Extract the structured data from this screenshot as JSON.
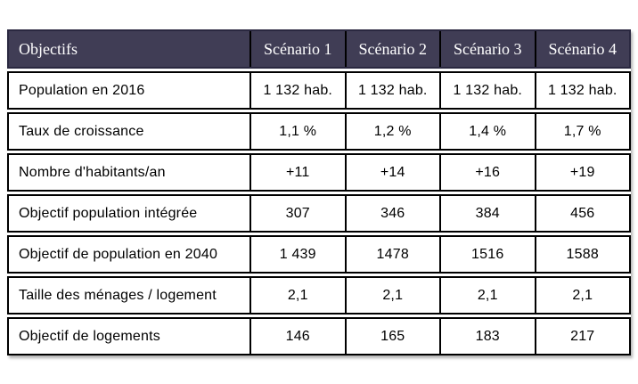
{
  "chart_data": {
    "type": "table",
    "title": "",
    "columns": [
      "Objectifs",
      "Scénario 1",
      "Scénario 2",
      "Scénario 3",
      "Scénario 4"
    ],
    "rows": [
      {
        "label": "Population en 2016",
        "values": [
          "1 132 hab.",
          "1 132 hab.",
          "1 132 hab.",
          "1 132 hab."
        ]
      },
      {
        "label": "Taux de croissance",
        "values": [
          "1,1 %",
          "1,2 %",
          "1,4 %",
          "1,7 %"
        ]
      },
      {
        "label": "Nombre d'habitants/an",
        "values": [
          "+11",
          "+14",
          "+16",
          "+19"
        ]
      },
      {
        "label": "Objectif population intégrée",
        "values": [
          "307",
          "346",
          "384",
          "456"
        ]
      },
      {
        "label": "Objectif de population en 2040",
        "values": [
          "1 439",
          "1478",
          "1516",
          "1588"
        ]
      },
      {
        "label": "Taille des ménages / logement",
        "values": [
          "2,1",
          "2,1",
          "2,1",
          "2,1"
        ]
      },
      {
        "label": "Objectif de logements",
        "values": [
          "146",
          "165",
          "183",
          "217"
        ]
      }
    ],
    "colors": {
      "header_bg": "#403d55",
      "header_text": "#ffffff",
      "border": "#000000",
      "body_text": "#000000",
      "page_bg": "#ffffff"
    }
  }
}
